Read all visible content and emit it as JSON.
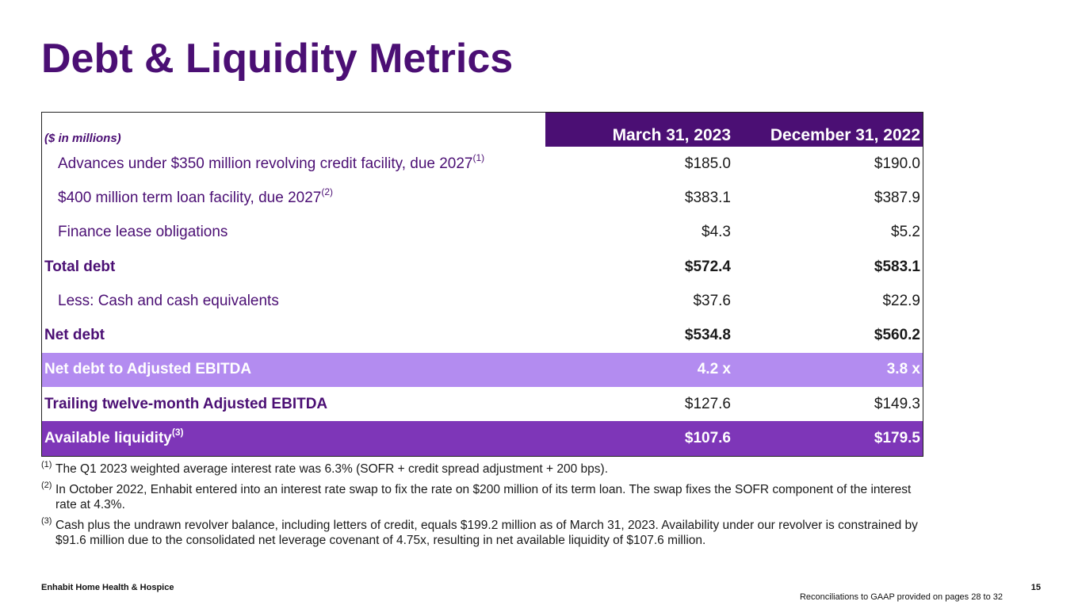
{
  "title": "Debt & Liquidity Metrics",
  "table": {
    "unit_label": "($ in millions)",
    "col1_header": "March 31, 2023",
    "col2_header": "December 31, 2022",
    "rows": [
      {
        "label": "Advances under $350 million revolving credit facility, due 2027",
        "sup": "(1)",
        "v1": "$185.0",
        "v2": "$190.0"
      },
      {
        "label": "$400 million term loan facility, due 2027",
        "sup": "(2)",
        "v1": "$383.1",
        "v2": "$387.9"
      },
      {
        "label": "Finance lease obligations",
        "v1": "$4.3",
        "v2": "$5.2"
      },
      {
        "label": "Total debt",
        "v1": "$572.4",
        "v2": "$583.1"
      },
      {
        "label": "Less: Cash and cash equivalents",
        "v1": "$37.6",
        "v2": "$22.9"
      },
      {
        "label": "Net debt",
        "v1": "$534.8",
        "v2": "$560.2"
      },
      {
        "label": "Net debt to Adjusted EBITDA",
        "v1": "4.2 x",
        "v2": "3.8 x"
      },
      {
        "label": "Trailing twelve-month Adjusted EBITDA",
        "v1": "$127.6",
        "v2": "$149.3"
      },
      {
        "label": "Available liquidity",
        "sup": "(3)",
        "v1": "$107.6",
        "v2": "$179.5"
      }
    ]
  },
  "footnotes": [
    {
      "mark": "(1)",
      "text": "The Q1 2023 weighted average interest rate was 6.3% (SOFR + credit spread adjustment + 200 bps)."
    },
    {
      "mark": "(2)",
      "text": "In October 2022, Enhabit entered into an interest rate swap to fix the rate on $200 million of its term loan. The swap fixes the SOFR component of the interest rate at 4.3%."
    },
    {
      "mark": "(3)",
      "text": "Cash plus the undrawn revolver balance, including letters of credit, equals $199.2 million as of March 31, 2023. Availability under our revolver is constrained by $91.6 million due to the consolidated net leverage covenant of 4.75x, resulting in net available liquidity of $107.6 million."
    }
  ],
  "footer": {
    "company": "Enhabit Home Health & Hospice",
    "page": "15",
    "reconciliation": "Reconciliations to GAAP provided on pages 28 to 32"
  }
}
